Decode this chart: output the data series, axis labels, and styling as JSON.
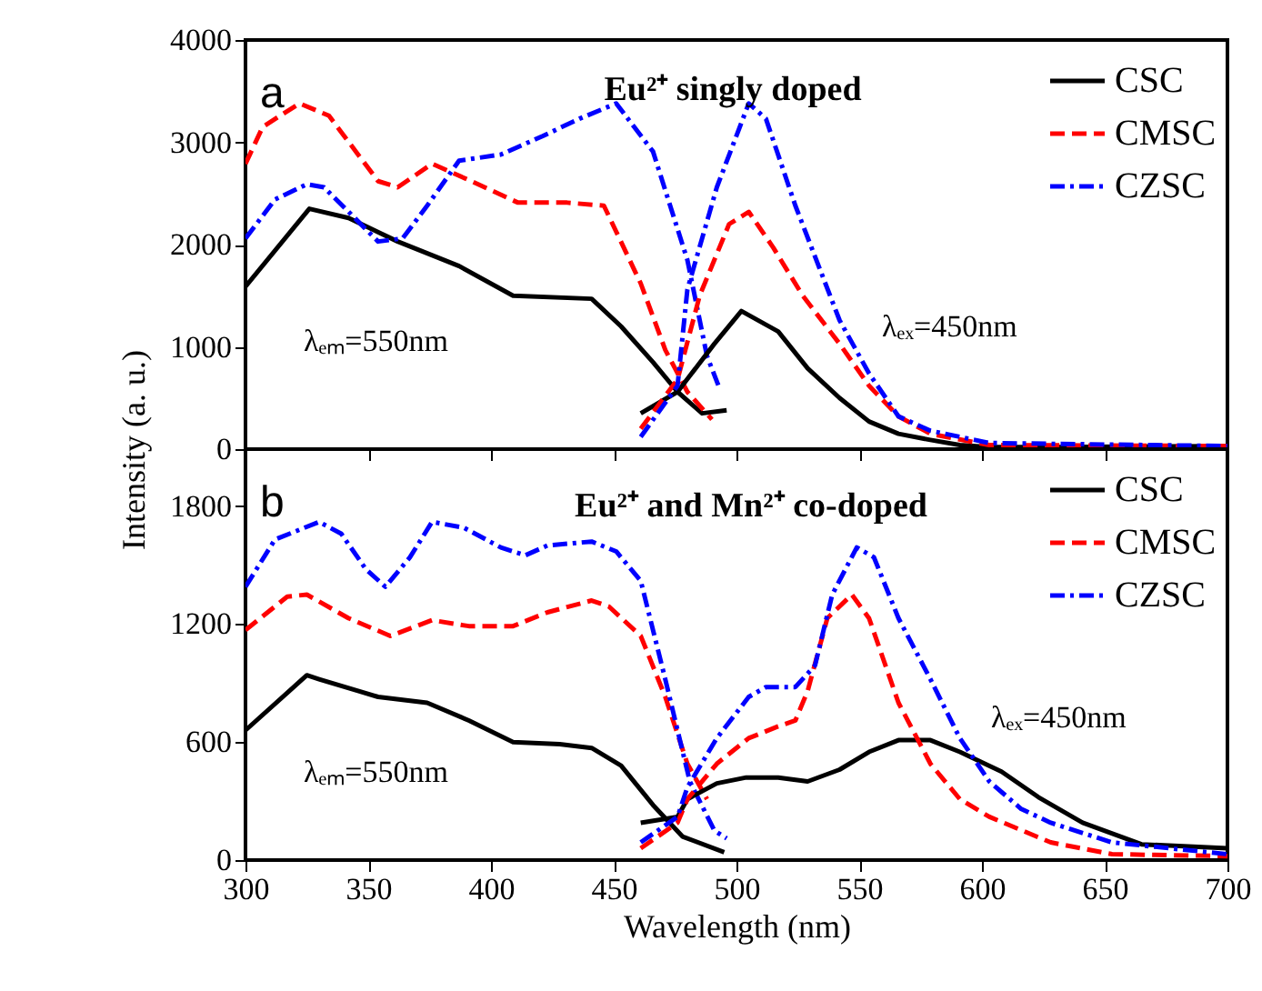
{
  "chart_data": [
    {
      "type": "line",
      "title": "Eu²⁺ singly doped",
      "ylabel": "Intensity (a. u.)",
      "annotations": [
        "a",
        "λₑₘ=550nm",
        "λₑₓ=450nm"
      ],
      "xlim": [
        300,
        700
      ],
      "xticks": [
        300,
        350,
        400,
        450,
        500,
        550,
        600,
        650,
        700
      ],
      "ylim": [
        0,
        4000
      ],
      "yticks": [
        0,
        1000,
        2000,
        3000,
        4000
      ],
      "tick_labels": "y",
      "grid": false,
      "legend": "top right",
      "series": [
        {
          "name": "CSC",
          "color": "#000000",
          "line_style": "solid",
          "x": [
            300,
            326,
            342,
            362,
            387,
            409,
            441,
            453,
            466,
            476,
            486,
            496
          ],
          "values": [
            1590,
            2350,
            2260,
            2030,
            1790,
            1500,
            1470,
            1200,
            850,
            560,
            350,
            380
          ]
        },
        {
          "name": "CMSC",
          "color": "#ff0000",
          "line_style": "dashed",
          "x": [
            300,
            307,
            322,
            334,
            354,
            362,
            376,
            392,
            411,
            431,
            446,
            461,
            471,
            480,
            490
          ],
          "values": [
            2790,
            3150,
            3380,
            3260,
            2620,
            2560,
            2790,
            2620,
            2410,
            2410,
            2380,
            1620,
            970,
            560,
            290
          ]
        },
        {
          "name": "CZSC",
          "color": "#0000ff",
          "line_style": "dashdot",
          "x": [
            300,
            312,
            325,
            332,
            342,
            354,
            364,
            374,
            387,
            404,
            421,
            436,
            451,
            466,
            480,
            488,
            493
          ],
          "values": [
            2060,
            2440,
            2590,
            2560,
            2320,
            2030,
            2060,
            2380,
            2820,
            2880,
            3060,
            3230,
            3380,
            2910,
            1850,
            910,
            600
          ]
        },
        {
          "color": "#000000",
          "line_style": "solid",
          "x": [
            461,
            476,
            491,
            502,
            517,
            529,
            542,
            554,
            566,
            579,
            591,
            603,
            628,
            700
          ],
          "values": [
            350,
            560,
            1030,
            1350,
            1150,
            790,
            500,
            270,
            150,
            90,
            40,
            20,
            20,
            30
          ]
        },
        {
          "color": "#ff0000",
          "line_style": "dashed",
          "x": [
            461,
            476,
            485,
            497,
            505,
            515,
            527,
            542,
            554,
            566,
            579,
            603,
            700
          ],
          "values": [
            200,
            680,
            1500,
            2200,
            2320,
            1970,
            1500,
            1030,
            620,
            320,
            150,
            40,
            30
          ]
        },
        {
          "color": "#0000ff",
          "line_style": "dashdot",
          "x": [
            461,
            476,
            480,
            492,
            505,
            512,
            524,
            542,
            554,
            566,
            579,
            603,
            700
          ],
          "values": [
            120,
            620,
            1560,
            2560,
            3380,
            3230,
            2380,
            1260,
            740,
            320,
            180,
            60,
            30
          ]
        }
      ]
    },
    {
      "type": "line",
      "title": "Eu²⁺ and Mn²⁺ co-doped",
      "xlabel": "Wavelength (nm)",
      "annotations": [
        "b",
        "λₑₘ=550nm",
        "λₑₓ=450nm"
      ],
      "xlim": [
        300,
        700
      ],
      "xticks": [
        300,
        350,
        400,
        450,
        500,
        550,
        600,
        650,
        700
      ],
      "ylim": [
        0,
        2090
      ],
      "yticks": [
        0,
        600,
        1200,
        1800
      ],
      "grid": false,
      "legend": "top right",
      "series": [
        {
          "name": "CSC",
          "color": "#000000",
          "line_style": "solid",
          "x": [
            300,
            325,
            330,
            354,
            374,
            391,
            409,
            428,
            441,
            453,
            466,
            478,
            495
          ],
          "values": [
            660,
            940,
            920,
            830,
            800,
            710,
            600,
            590,
            570,
            480,
            280,
            120,
            40
          ]
        },
        {
          "name": "CMSC",
          "color": "#ff0000",
          "line_style": "dashed",
          "x": [
            300,
            317,
            325,
            342,
            359,
            376,
            391,
            409,
            423,
            441,
            448,
            461,
            471,
            480,
            488
          ],
          "values": [
            1170,
            1340,
            1350,
            1230,
            1140,
            1220,
            1190,
            1190,
            1260,
            1320,
            1290,
            1140,
            830,
            490,
            310
          ]
        },
        {
          "name": "CZSC",
          "color": "#0000ff",
          "line_style": "dashdot",
          "x": [
            300,
            312,
            330,
            339,
            349,
            357,
            367,
            376,
            389,
            404,
            414,
            423,
            441,
            451,
            461,
            471,
            481,
            491,
            496
          ],
          "values": [
            1390,
            1630,
            1720,
            1660,
            1480,
            1390,
            1540,
            1720,
            1690,
            1590,
            1550,
            1600,
            1620,
            1570,
            1420,
            920,
            400,
            150,
            110
          ]
        },
        {
          "color": "#000000",
          "line_style": "solid",
          "x": [
            461,
            476,
            480,
            492,
            504,
            517,
            529,
            542,
            554,
            566,
            579,
            591,
            608,
            623,
            641,
            665,
            700
          ],
          "values": [
            190,
            220,
            310,
            390,
            420,
            420,
            400,
            460,
            550,
            610,
            610,
            550,
            450,
            320,
            190,
            80,
            60
          ]
        },
        {
          "color": "#ff0000",
          "line_style": "dashed",
          "x": [
            461,
            476,
            480,
            492,
            505,
            517,
            524,
            529,
            537,
            547,
            554,
            566,
            579,
            591,
            603,
            628,
            653,
            700
          ],
          "values": [
            60,
            190,
            310,
            490,
            620,
            680,
            710,
            860,
            1230,
            1350,
            1230,
            800,
            490,
            310,
            220,
            90,
            30,
            20
          ]
        },
        {
          "color": "#0000ff",
          "line_style": "dashdot",
          "x": [
            461,
            476,
            480,
            492,
            505,
            512,
            524,
            532,
            539,
            549,
            556,
            566,
            579,
            591,
            603,
            616,
            628,
            653,
            700
          ],
          "values": [
            90,
            220,
            370,
            620,
            830,
            880,
            880,
            990,
            1350,
            1590,
            1540,
            1230,
            920,
            620,
            400,
            260,
            190,
            90,
            30
          ]
        }
      ]
    }
  ]
}
